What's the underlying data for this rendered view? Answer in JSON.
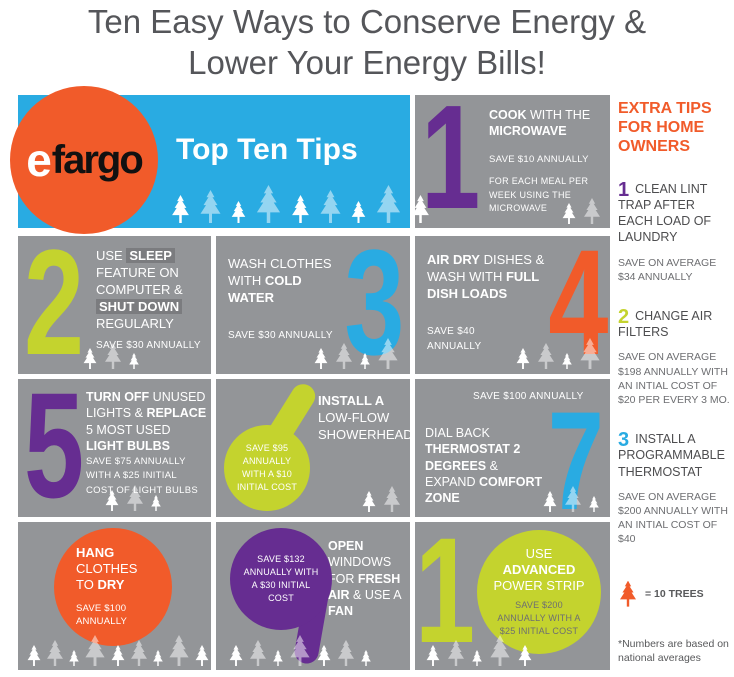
{
  "title": {
    "line1": "Ten Easy Ways to Conserve Energy &",
    "line2": "Lower Your Energy Bills!"
  },
  "header": {
    "logo": {
      "e": "e",
      "rest": "fargo"
    },
    "tagline": "Top Ten Tips",
    "trees": 9
  },
  "tiles": [
    {
      "number": "1",
      "color": "#662D91",
      "text": [
        {
          "t": "COOK",
          "b": true
        },
        {
          "t": " WITH THE ",
          "b": false
        },
        {
          "t": "MICROWAVE",
          "b": true
        }
      ],
      "save": "SAVE $10 ANNUALLY",
      "note": "FOR EACH MEAL PER WEEK USING THE MICROWAVE",
      "trees": 2
    },
    {
      "number": "2",
      "color": "#C4D32E",
      "text": [
        {
          "t": "USE ",
          "b": false
        },
        {
          "t": "SLEEP",
          "b": true,
          "hl": true
        },
        {
          "t": " FEATURE ON COMPUTER & ",
          "b": false
        },
        {
          "t": "SHUT DOWN",
          "b": true,
          "hl": true
        },
        {
          "t": " REGULARLY",
          "b": false
        }
      ],
      "save": "SAVE $30 ANNUALLY",
      "trees": 3
    },
    {
      "number": "3",
      "color": "#29ABE2",
      "text": [
        {
          "t": "WASH CLOTHES WITH ",
          "b": false
        },
        {
          "t": "COLD WATER",
          "b": true
        }
      ],
      "save": "SAVE $30 ANNUALLY",
      "trees": 4
    },
    {
      "number": "4",
      "color": "#F15B2A",
      "text": [
        {
          "t": "AIR DRY",
          "b": true
        },
        {
          "t": " DISHES & WASH WITH ",
          "b": false
        },
        {
          "t": "FULL DISH LOADS",
          "b": true
        }
      ],
      "save": "SAVE $40 ANNUALLY",
      "trees": 4
    },
    {
      "number": "5",
      "color": "#662D91",
      "text": [
        {
          "t": "TURN OFF",
          "b": true
        },
        {
          "t": " UNUSED LIGHTS & ",
          "b": false
        },
        {
          "t": "REPLACE",
          "b": true
        },
        {
          "t": " 5 MOST USED ",
          "b": false
        },
        {
          "t": "LIGHT BULBS",
          "b": true
        }
      ],
      "save": "SAVE $75 ANNUALLY WITH A $25 INITIAL COST OF LIGHT BULBS",
      "trees": 3
    },
    {
      "number": "6",
      "color": "#C4D32E",
      "text": [
        {
          "t": "INSTALL A ",
          "b": true
        },
        {
          "t": "LOW-FLOW SHOWERHEAD",
          "b": false
        }
      ],
      "save": "SAVE $95 ANNUALLY WITH A $10 INITIAL COST",
      "trees": 2
    },
    {
      "number": "7",
      "color": "#29ABE2",
      "save": "SAVE $100 ANNUALLY",
      "text": [
        {
          "t": "DIAL BACK",
          "b": false
        },
        {
          "t": " THERMOSTAT 2 DEGREES",
          "b": true
        },
        {
          "t": " & EXPAND ",
          "b": false
        },
        {
          "t": "COMFORT ZONE",
          "b": true
        }
      ],
      "trees": 3
    },
    {
      "number": "8",
      "color": "#F15B2A",
      "text": [
        {
          "t": "HANG",
          "b": true
        },
        {
          "t": " CLOTHES TO ",
          "b": false
        },
        {
          "t": "DRY",
          "b": true
        }
      ],
      "save": "SAVE $100 ANNUALLY",
      "trees": 9
    },
    {
      "number": "9",
      "color": "#662D91",
      "save": "SAVE $132 ANNUALLY WITH A $30 INITIAL COST",
      "text": [
        {
          "t": "OPEN",
          "b": true
        },
        {
          "t": " WINDOWS FOR ",
          "b": false
        },
        {
          "t": "FRESH AIR",
          "b": true
        },
        {
          "t": " & USE A ",
          "b": false
        },
        {
          "t": "FAN",
          "b": true
        }
      ],
      "trees": 7
    },
    {
      "number": "10",
      "color": "#C4D32E",
      "text": [
        {
          "t": "USE ",
          "b": false
        },
        {
          "t": "ADVANCED",
          "b": true
        },
        {
          "t": " POWER STRIP",
          "b": false
        }
      ],
      "save": "SAVE $200 ANNUALLY WITH A $25 INITIAL COST",
      "trees": 5
    }
  ],
  "sidebar": {
    "heading": "EXTRA TIPS FOR HOME OWNERS",
    "tips": [
      {
        "number": "1",
        "color": "#662D91",
        "title": "CLEAN LINT TRAP AFTER EACH LOAD OF LAUNDRY",
        "save": "SAVE ON AVERAGE $34 ANNUALLY"
      },
      {
        "number": "2",
        "color": "#C4D32E",
        "title": "CHANGE AIR FILTERS",
        "save": "SAVE ON AVERAGE $198 ANNUALLY WITH AN INTIAL COST OF $20 PER EVERY 3 MO."
      },
      {
        "number": "3",
        "color": "#29ABE2",
        "title": "INSTALL A PROGRAMMABLE THERMOSTAT",
        "save": "SAVE ON AVERAGE $200 ANNUALLY WITH AN INTIAL COST OF $40"
      }
    ],
    "legend": "= 10 TREES",
    "footnote": "*Numbers are based on national averages"
  },
  "colors": {
    "orange": "#F15B2A",
    "purple": "#662D91",
    "lime": "#C4D32E",
    "blue": "#29ABE2",
    "tile_gray": "#939598",
    "text_gray": "#58595B"
  }
}
